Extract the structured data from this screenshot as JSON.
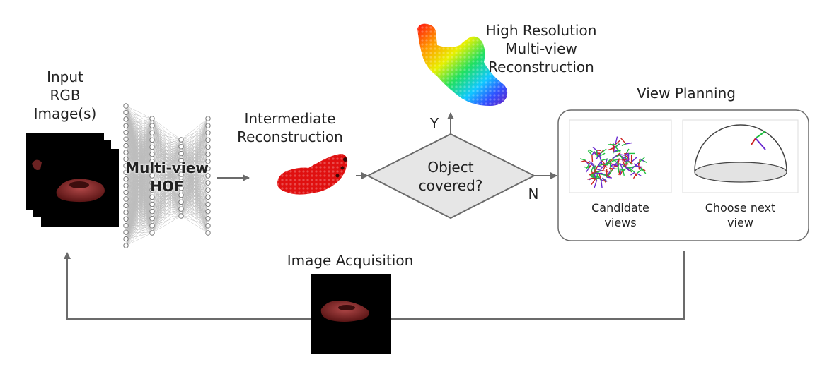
{
  "input": {
    "line1": "Input",
    "line2": "RGB",
    "line3": "Image(s)"
  },
  "network": {
    "line1": "Multi-view",
    "line2": "HOF"
  },
  "intermediate": {
    "line1": "Intermediate",
    "line2": "Reconstruction"
  },
  "decision": {
    "line1": "Object",
    "line2": "covered?",
    "yes": "Y",
    "no": "N"
  },
  "high_res": {
    "line1": "High Resolution",
    "line2": "Multi-view",
    "line3": "Reconstruction"
  },
  "view_planning": {
    "title": "View Planning",
    "candidate": {
      "line1": "Candidate",
      "line2": "views"
    },
    "choose": {
      "line1": "Choose next",
      "line2": "view"
    }
  },
  "acquisition": {
    "title": "Image Acquisition"
  },
  "colors": {
    "arrow": "#6b6b6b",
    "diamond_fill": "#e6e6e6",
    "shoe": "#8b2a2a",
    "pointcloud": "#e01010"
  }
}
